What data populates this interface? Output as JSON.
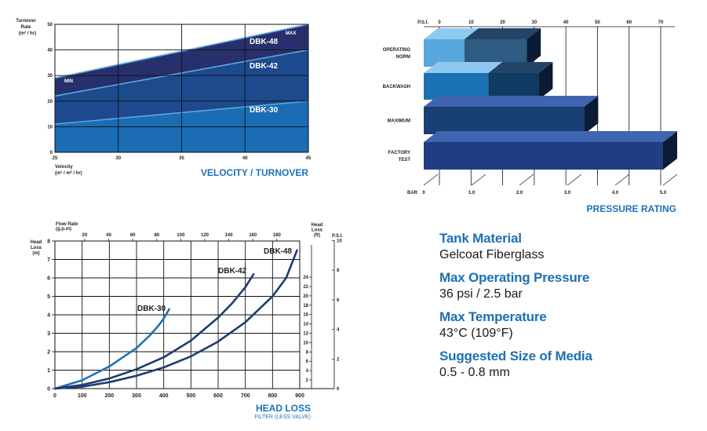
{
  "chart_data": [
    {
      "type": "area",
      "title": "VELOCITY / TURNOVER",
      "xlabel": "Velocity",
      "xunit": "(m³ / m² / hr)",
      "ylabel": "Turnover Rate",
      "yunit": "(m³ / hr)",
      "xlim": [
        25,
        45
      ],
      "ylim": [
        0,
        50
      ],
      "xticks": [
        "25",
        "30",
        "35",
        "40",
        "45"
      ],
      "yticks": [
        "0",
        "10",
        "20",
        "30",
        "40",
        "50"
      ],
      "min_label": "MIN",
      "max_label": "MAX",
      "series": [
        {
          "name": "DBK-48",
          "x": [
            25,
            45
          ],
          "y": [
            29,
            50
          ],
          "color": "#27306c"
        },
        {
          "name": "DBK-42",
          "x": [
            25,
            45
          ],
          "y": [
            22,
            40
          ],
          "color": "#1c4a8c"
        },
        {
          "name": "DBK-30",
          "x": [
            25,
            45
          ],
          "y": [
            11,
            20
          ],
          "color": "#1b6cb3"
        }
      ]
    },
    {
      "type": "bar",
      "title": "PRESSURE RATING",
      "top_axis_label": "P.S.I.",
      "bottom_axis_label": "BAR",
      "psi_ticks": [
        "0",
        "10",
        "20",
        "30",
        "40",
        "50",
        "60",
        "70"
      ],
      "bar_ticks": [
        "0",
        "1.0",
        "2.0",
        "3.0",
        "4.0",
        "5.0"
      ],
      "xlim_bar": [
        0,
        5
      ],
      "categories": [
        {
          "label": [
            "OPERATING",
            "NORM"
          ],
          "start": 0,
          "mid": 0.85,
          "end": 2.15,
          "colors": [
            "#57a7dc",
            "#2e5b82"
          ]
        },
        {
          "label": [
            "BACKWASH"
          ],
          "start": 0,
          "mid": 1.35,
          "end": 2.4,
          "colors": [
            "#1a72b5",
            "#103a60"
          ]
        },
        {
          "label": [
            "MAXIMUM"
          ],
          "start": 0,
          "end": 3.35,
          "colors": [
            "#173f74"
          ]
        },
        {
          "label": [
            "FACTORY",
            "TEST"
          ],
          "start": 0,
          "end": 5.0,
          "colors": [
            "#213c82"
          ]
        }
      ]
    },
    {
      "type": "line",
      "title": "HEAD LOSS",
      "subtitle": "FILTER (LESS VALVE)",
      "top_axis_label": [
        "Flow Rate",
        "(g.p.m)"
      ],
      "left_axis_label": [
        "Head",
        "Loss",
        "(m)"
      ],
      "right_axis_label_ft": [
        "Head",
        "Loss",
        "(ft)"
      ],
      "right_axis_label_psi": "P.S.I.",
      "xlim": [
        0,
        900
      ],
      "ylim": [
        0,
        8
      ],
      "xticks": [
        "0",
        "100",
        "200",
        "300",
        "400",
        "500",
        "600",
        "700",
        "800",
        "900"
      ],
      "yticks": [
        "0",
        "1",
        "2",
        "3",
        "4",
        "5",
        "6",
        "7",
        "8"
      ],
      "gpm_ticks": [
        "20",
        "40",
        "60",
        "80",
        "100",
        "120",
        "140",
        "160",
        "180"
      ],
      "ft_ticks": [
        "2",
        "4",
        "6",
        "8",
        "10",
        "12",
        "14",
        "16",
        "18",
        "20",
        "22",
        "24"
      ],
      "psi_ticks": [
        "0",
        "2",
        "4",
        "6",
        "8",
        "10"
      ],
      "series": [
        {
          "name": "DBK-30",
          "x": [
            0,
            100,
            200,
            300,
            350,
            380,
            400,
            420
          ],
          "y": [
            0,
            0.45,
            1.2,
            2.2,
            2.9,
            3.4,
            3.8,
            4.3
          ],
          "color": "#1e73b2"
        },
        {
          "name": "DBK-42",
          "x": [
            0,
            100,
            200,
            300,
            400,
            500,
            600,
            650,
            700,
            730
          ],
          "y": [
            0,
            0.2,
            0.55,
            1.05,
            1.7,
            2.6,
            3.85,
            4.6,
            5.5,
            6.2
          ],
          "color": "#1d3c6e"
        },
        {
          "name": "DBK-48",
          "x": [
            0,
            100,
            200,
            300,
            400,
            500,
            600,
            700,
            800,
            850,
            890
          ],
          "y": [
            0,
            0.1,
            0.35,
            0.7,
            1.15,
            1.75,
            2.55,
            3.6,
            5.0,
            6.0,
            7.5
          ],
          "color": "#1d3c6e"
        }
      ]
    }
  ],
  "specs": [
    {
      "heading": "Tank Material",
      "value": "Gelcoat Fiberglass"
    },
    {
      "heading": "Max Operating Pressure",
      "value": "36 psi / 2.5 bar"
    },
    {
      "heading": "Max Temperature",
      "value": "43°C (109°F)"
    },
    {
      "heading": "Suggested Size of Media",
      "value": "0.5 - 0.8 mm"
    }
  ]
}
